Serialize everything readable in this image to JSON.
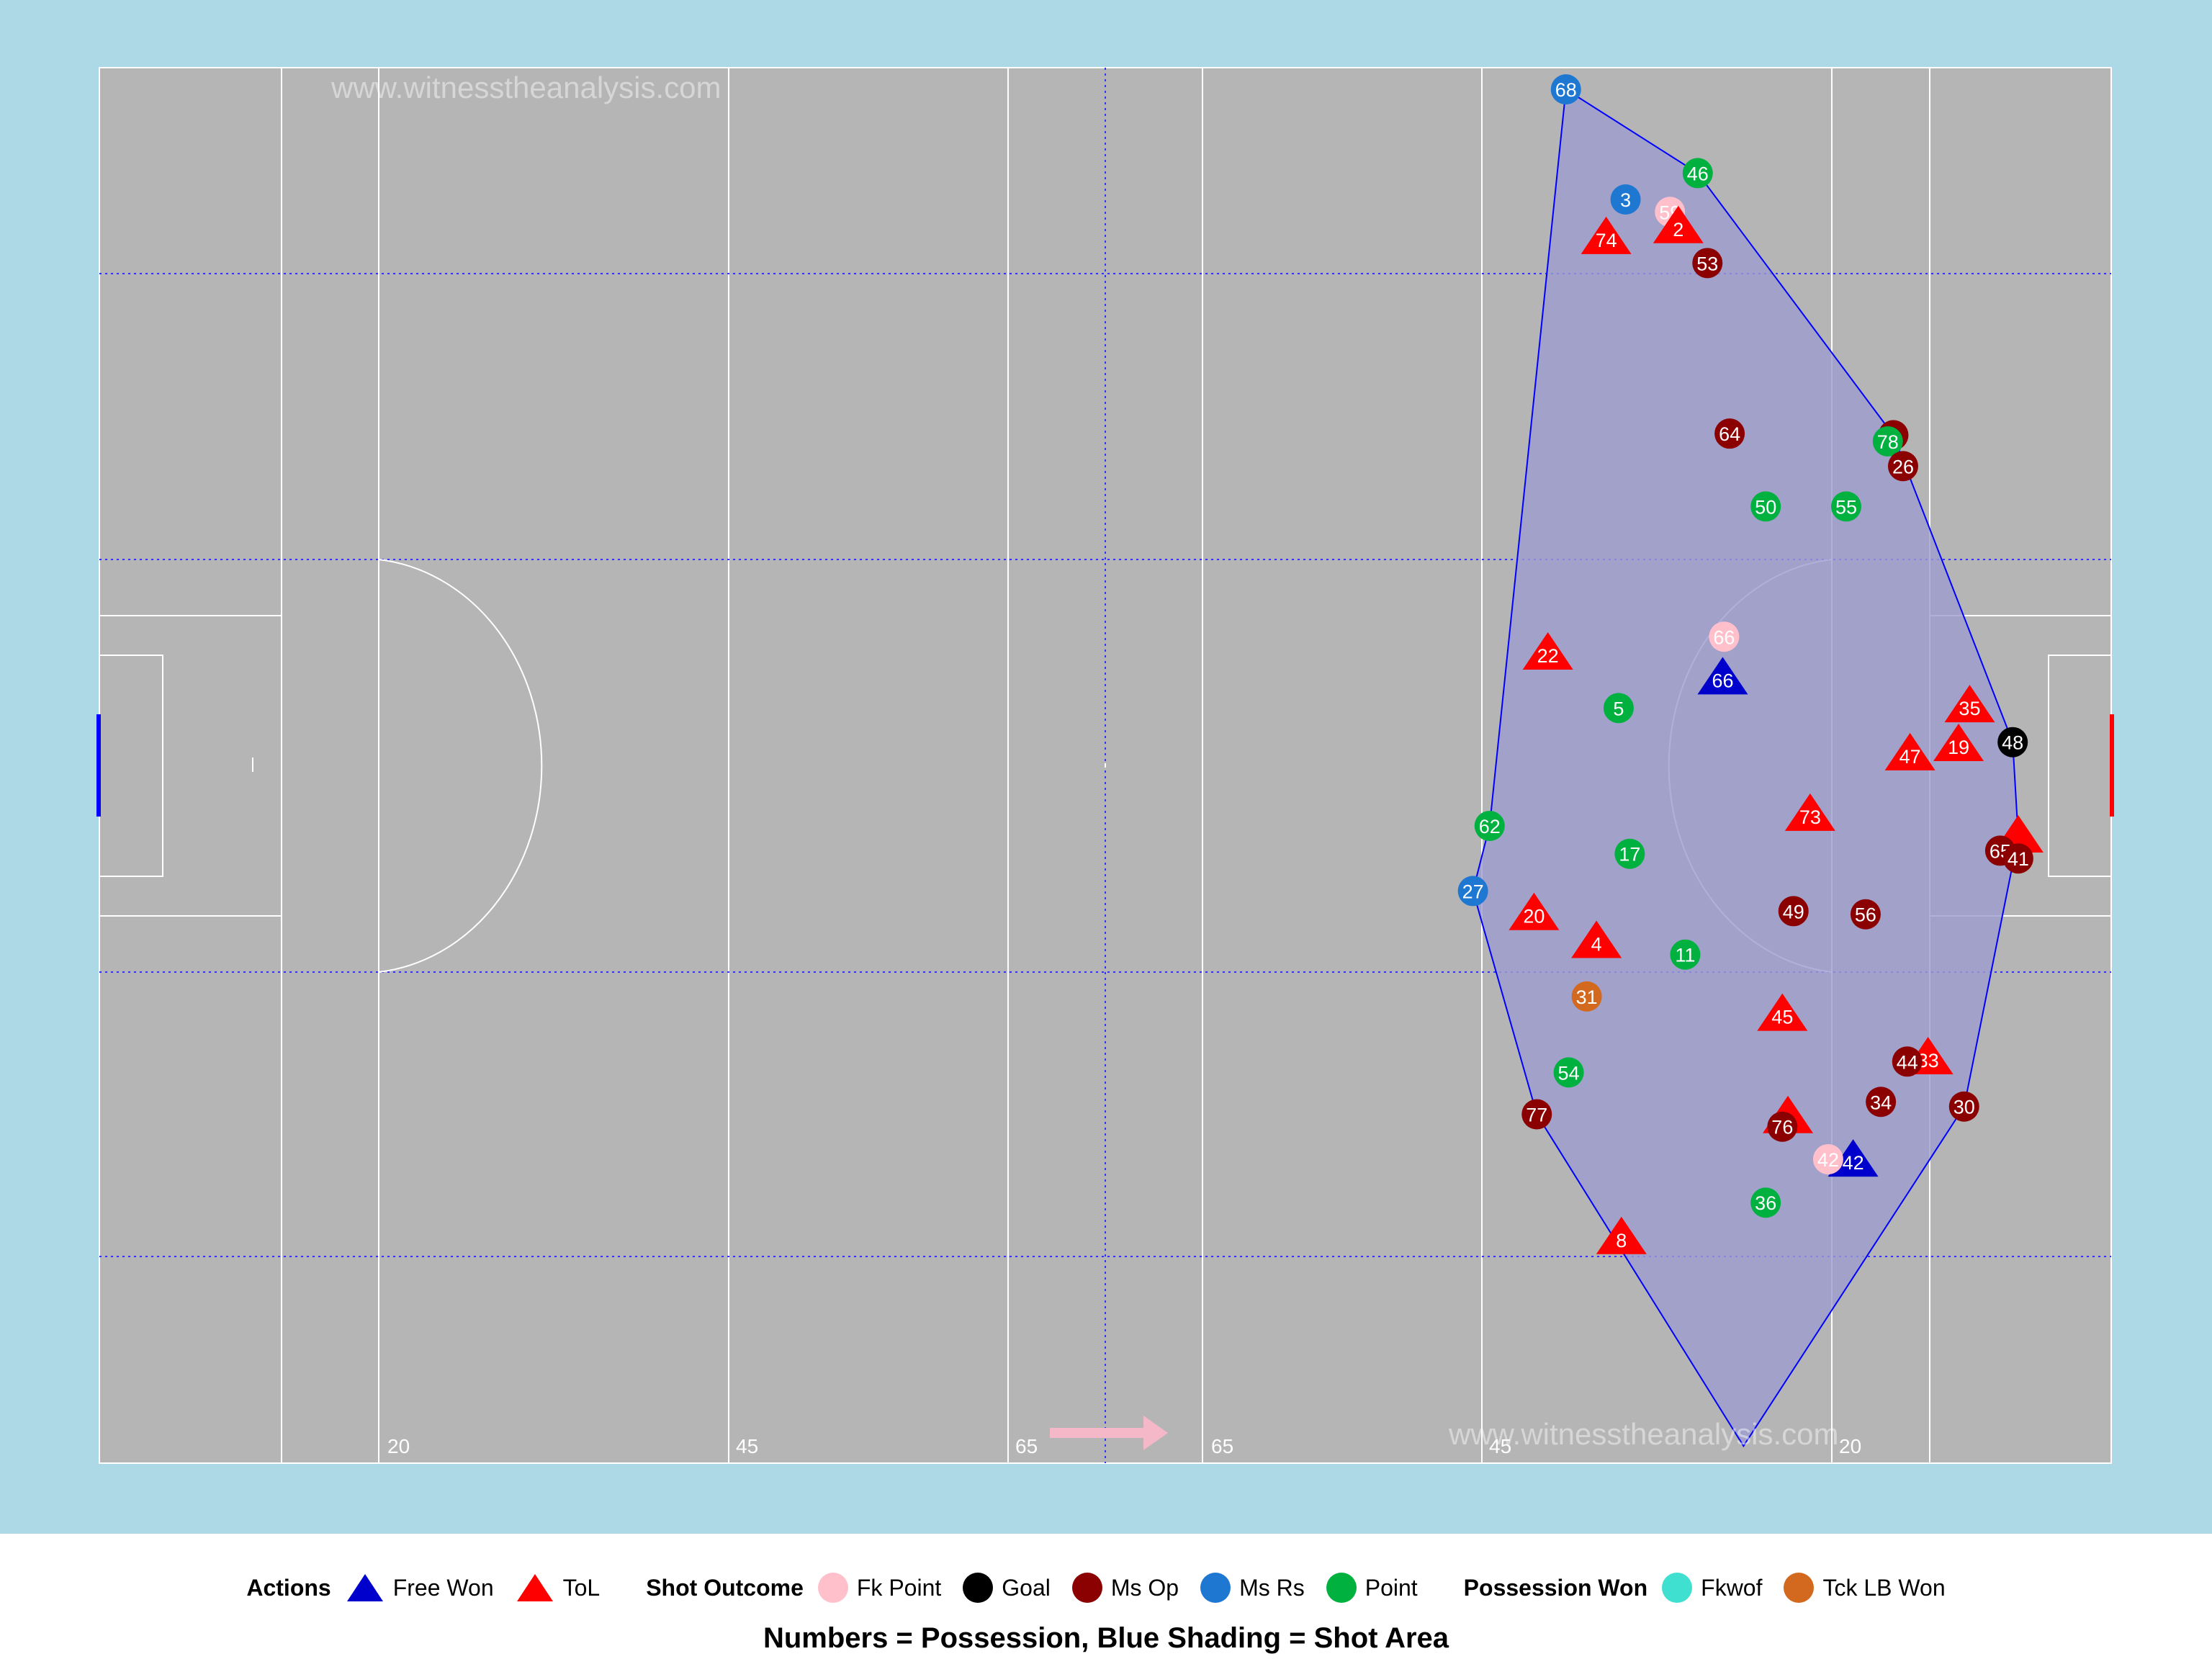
{
  "watermarks": [
    "www.witnesstheanalysis.com",
    "www.witnesstheanalysis.com"
  ],
  "pitch_labels": [
    "20",
    "45",
    "65",
    "65",
    "45",
    "20"
  ],
  "colors": {
    "background": "#add8e6",
    "pitch": "#b5b5b5",
    "shot_area_fill": "#9c9cd0",
    "shot_area_line": "#0000ff",
    "arrow": "#f4b8c8"
  },
  "chart_data": {
    "type": "scatter",
    "title": "",
    "subtitle": "Numbers = Possession, Blue Shading = Shot Area",
    "xlabel": "",
    "ylabel": "",
    "xlim": [
      0,
      145
    ],
    "ylim": [
      0,
      90
    ],
    "grid": false,
    "legend_position": "bottom",
    "legend": [
      {
        "group": "Actions",
        "items": [
          {
            "label": "Free Won",
            "shape": "triangle",
            "color": "#0000cc"
          },
          {
            "label": "ToL",
            "shape": "triangle",
            "color": "#ff0000"
          }
        ]
      },
      {
        "group": "Shot Outcome",
        "items": [
          {
            "label": "Fk Point",
            "shape": "circle",
            "color": "#ffc0cb"
          },
          {
            "label": "Goal",
            "shape": "circle",
            "color": "#000000"
          },
          {
            "label": "Ms Op",
            "shape": "circle",
            "color": "#8b0000"
          },
          {
            "label": "Ms Rs",
            "shape": "circle",
            "color": "#1e78d2"
          },
          {
            "label": "Point",
            "shape": "circle",
            "color": "#00b140"
          }
        ]
      },
      {
        "group": "Possession Won",
        "items": [
          {
            "label": "Fkwof",
            "shape": "circle",
            "color": "#40e0d0"
          },
          {
            "label": "Tck LB Won",
            "shape": "circle",
            "color": "#d2691e"
          }
        ]
      }
    ],
    "shot_area_polygon": [
      [
        105.7,
        88.6
      ],
      [
        115.2,
        83.2
      ],
      [
        129.3,
        66.3
      ],
      [
        137.9,
        46.5
      ],
      [
        138.3,
        40.4
      ],
      [
        134.4,
        23.0
      ],
      [
        118.5,
        1.1
      ],
      [
        103.6,
        22.5
      ],
      [
        99.0,
        36.9
      ],
      [
        100.2,
        41.1
      ]
    ],
    "points": [
      {
        "type": "Ms Rs",
        "label": "68",
        "x": 105.7,
        "y": 88.6
      },
      {
        "type": "Point",
        "label": "46",
        "x": 115.2,
        "y": 83.2
      },
      {
        "type": "Ms Rs",
        "label": "3",
        "x": 110.0,
        "y": 81.5
      },
      {
        "type": "Fk Point",
        "label": "59",
        "x": 113.2,
        "y": 80.7
      },
      {
        "type": "ToL",
        "label": "2",
        "x": 113.8,
        "y": 79.7
      },
      {
        "type": "ToL",
        "label": "74",
        "x": 108.6,
        "y": 79.0
      },
      {
        "type": "Ms Op",
        "label": "53",
        "x": 115.9,
        "y": 77.4
      },
      {
        "type": "Ms Op",
        "label": "64",
        "x": 117.5,
        "y": 66.4
      },
      {
        "type": "Ms Op",
        "label": "",
        "x": 129.3,
        "y": 66.3
      },
      {
        "type": "Point",
        "label": "78",
        "x": 128.9,
        "y": 65.9
      },
      {
        "type": "Ms Op",
        "label": "26",
        "x": 130.0,
        "y": 64.3
      },
      {
        "type": "Point",
        "label": "50",
        "x": 120.1,
        "y": 61.7
      },
      {
        "type": "Point",
        "label": "55",
        "x": 125.9,
        "y": 61.7
      },
      {
        "type": "Fk Point",
        "label": "66",
        "x": 117.1,
        "y": 53.3
      },
      {
        "type": "ToL",
        "label": "22",
        "x": 104.4,
        "y": 52.2
      },
      {
        "type": "Free Won",
        "label": "66",
        "x": 117.0,
        "y": 50.6
      },
      {
        "type": "ToL",
        "label": "35",
        "x": 134.8,
        "y": 48.8
      },
      {
        "type": "Goal",
        "label": "48",
        "x": 137.9,
        "y": 46.5
      },
      {
        "type": "Point",
        "label": "5",
        "x": 109.5,
        "y": 48.7
      },
      {
        "type": "ToL",
        "label": "19",
        "x": 134.0,
        "y": 46.3
      },
      {
        "type": "ToL",
        "label": "47",
        "x": 130.5,
        "y": 45.7
      },
      {
        "type": "ToL",
        "label": "73",
        "x": 123.3,
        "y": 41.8
      },
      {
        "type": "Point",
        "label": "62",
        "x": 100.2,
        "y": 41.1
      },
      {
        "type": "ToL",
        "label": "",
        "x": 138.3,
        "y": 40.4
      },
      {
        "type": "Ms Op",
        "label": "65",
        "x": 137.0,
        "y": 39.5
      },
      {
        "type": "Ms Op",
        "label": "41",
        "x": 138.3,
        "y": 39.0
      },
      {
        "type": "Point",
        "label": "17",
        "x": 110.3,
        "y": 39.3
      },
      {
        "type": "Ms Rs",
        "label": "27",
        "x": 99.0,
        "y": 36.9
      },
      {
        "type": "ToL",
        "label": "20",
        "x": 103.4,
        "y": 35.4
      },
      {
        "type": "Ms Op",
        "label": "49",
        "x": 122.1,
        "y": 35.6
      },
      {
        "type": "Ms Op",
        "label": "56",
        "x": 127.3,
        "y": 35.4
      },
      {
        "type": "ToL",
        "label": "4",
        "x": 107.9,
        "y": 33.6
      },
      {
        "type": "Point",
        "label": "11",
        "x": 114.3,
        "y": 32.8
      },
      {
        "type": "Tck LB Won",
        "label": "31",
        "x": 107.2,
        "y": 30.1
      },
      {
        "type": "ToL",
        "label": "45",
        "x": 121.3,
        "y": 28.9
      },
      {
        "type": "ToL",
        "label": "33",
        "x": 131.8,
        "y": 26.1
      },
      {
        "type": "Ms Op",
        "label": "44",
        "x": 130.3,
        "y": 25.9
      },
      {
        "type": "Point",
        "label": "54",
        "x": 105.9,
        "y": 25.2
      },
      {
        "type": "Ms Op",
        "label": "30",
        "x": 134.4,
        "y": 23.0
      },
      {
        "type": "Ms Op",
        "label": "34",
        "x": 128.4,
        "y": 23.3
      },
      {
        "type": "Ms Op",
        "label": "77",
        "x": 103.6,
        "y": 22.5
      },
      {
        "type": "ToL",
        "label": "",
        "x": 121.7,
        "y": 22.3
      },
      {
        "type": "Ms Op",
        "label": "76",
        "x": 121.3,
        "y": 21.7
      },
      {
        "type": "Free Won",
        "label": "42",
        "x": 126.4,
        "y": 19.5
      },
      {
        "type": "Fk Point",
        "label": "42",
        "x": 124.6,
        "y": 19.6
      },
      {
        "type": "Point",
        "label": "36",
        "x": 120.1,
        "y": 16.8
      },
      {
        "type": "ToL",
        "label": "8",
        "x": 109.7,
        "y": 14.5
      },
      {
        "type": "",
        "label": "",
        "x": 118.5,
        "y": 1.1
      }
    ]
  }
}
